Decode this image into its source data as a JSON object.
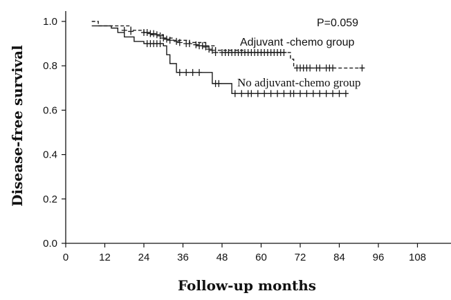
{
  "chart_data": {
    "type": "line",
    "title": "",
    "xlabel": "Follow-up months",
    "ylabel": "Disease-free survival",
    "xlim": [
      0,
      120
    ],
    "ylim": [
      0,
      1.0
    ],
    "x_ticks": [
      "0",
      "12",
      "24",
      "36",
      "48",
      "60",
      "72",
      "84",
      "96",
      "108"
    ],
    "y_ticks": [
      "0.0",
      "0.2",
      "0.4",
      "0.6",
      "0.8",
      "1.0"
    ],
    "grid": false,
    "annotations": [
      {
        "text": "P=0.059"
      },
      {
        "text": "Adjuvant -chemo group"
      },
      {
        "text": "No adjuvant-chemo group"
      }
    ],
    "series": [
      {
        "style": "dashed",
        "color": "#1a1a1a",
        "steps": [
          [
            8,
            1.0
          ],
          [
            10,
            0.98
          ],
          [
            20,
            0.96
          ],
          [
            24,
            0.95
          ],
          [
            26,
            0.94
          ],
          [
            30,
            0.925
          ],
          [
            33,
            0.915
          ],
          [
            38,
            0.905
          ],
          [
            43,
            0.89
          ],
          [
            46,
            0.87
          ],
          [
            55,
            0.86
          ],
          [
            69,
            0.83
          ],
          [
            70,
            0.79
          ],
          [
            92,
            0.79
          ]
        ],
        "censored": [
          [
            18,
            0.96
          ],
          [
            20,
            0.955
          ],
          [
            24,
            0.95
          ],
          [
            25,
            0.95
          ],
          [
            26,
            0.945
          ],
          [
            27,
            0.945
          ],
          [
            28,
            0.94
          ],
          [
            29,
            0.935
          ],
          [
            30,
            0.925
          ],
          [
            31,
            0.92
          ],
          [
            32,
            0.915
          ],
          [
            34,
            0.91
          ],
          [
            35,
            0.905
          ],
          [
            37,
            0.9
          ],
          [
            38,
            0.9
          ],
          [
            40,
            0.895
          ],
          [
            41,
            0.89
          ],
          [
            42,
            0.89
          ],
          [
            43,
            0.885
          ],
          [
            44,
            0.875
          ],
          [
            45,
            0.87
          ],
          [
            46,
            0.86
          ],
          [
            48,
            0.86
          ],
          [
            49,
            0.86
          ],
          [
            50,
            0.86
          ],
          [
            51,
            0.86
          ],
          [
            52,
            0.86
          ],
          [
            53,
            0.86
          ],
          [
            54,
            0.86
          ],
          [
            55,
            0.86
          ],
          [
            56,
            0.86
          ],
          [
            57,
            0.86
          ],
          [
            58,
            0.86
          ],
          [
            59,
            0.86
          ],
          [
            60,
            0.86
          ],
          [
            61,
            0.86
          ],
          [
            62,
            0.86
          ],
          [
            63,
            0.86
          ],
          [
            64,
            0.86
          ],
          [
            65,
            0.86
          ],
          [
            66,
            0.86
          ],
          [
            67,
            0.86
          ],
          [
            71,
            0.79
          ],
          [
            72,
            0.79
          ],
          [
            73,
            0.79
          ],
          [
            74,
            0.79
          ],
          [
            75,
            0.79
          ],
          [
            77,
            0.79
          ],
          [
            78,
            0.79
          ],
          [
            80,
            0.79
          ],
          [
            81,
            0.79
          ],
          [
            82,
            0.79
          ],
          [
            91,
            0.79
          ]
        ]
      },
      {
        "style": "solid",
        "color": "#1a1a1a",
        "steps": [
          [
            8,
            0.98
          ],
          [
            14,
            0.97
          ],
          [
            16,
            0.95
          ],
          [
            18,
            0.93
          ],
          [
            21,
            0.91
          ],
          [
            24,
            0.9
          ],
          [
            30,
            0.89
          ],
          [
            31,
            0.85
          ],
          [
            32,
            0.81
          ],
          [
            34,
            0.77
          ],
          [
            45,
            0.72
          ],
          [
            51,
            0.675
          ],
          [
            86,
            0.675
          ]
        ],
        "censored": [
          [
            25,
            0.9
          ],
          [
            26,
            0.9
          ],
          [
            27,
            0.9
          ],
          [
            28,
            0.9
          ],
          [
            29,
            0.9
          ],
          [
            35,
            0.77
          ],
          [
            37,
            0.77
          ],
          [
            39,
            0.77
          ],
          [
            41,
            0.77
          ],
          [
            46,
            0.72
          ],
          [
            47,
            0.72
          ],
          [
            52,
            0.675
          ],
          [
            54,
            0.675
          ],
          [
            56,
            0.675
          ],
          [
            57,
            0.675
          ],
          [
            59,
            0.675
          ],
          [
            61,
            0.675
          ],
          [
            63,
            0.675
          ],
          [
            65,
            0.675
          ],
          [
            67,
            0.675
          ],
          [
            69,
            0.675
          ],
          [
            70,
            0.675
          ],
          [
            72,
            0.675
          ],
          [
            74,
            0.675
          ],
          [
            76,
            0.675
          ],
          [
            78,
            0.675
          ],
          [
            80,
            0.675
          ],
          [
            82,
            0.675
          ],
          [
            84,
            0.675
          ],
          [
            86,
            0.675
          ]
        ]
      }
    ]
  }
}
